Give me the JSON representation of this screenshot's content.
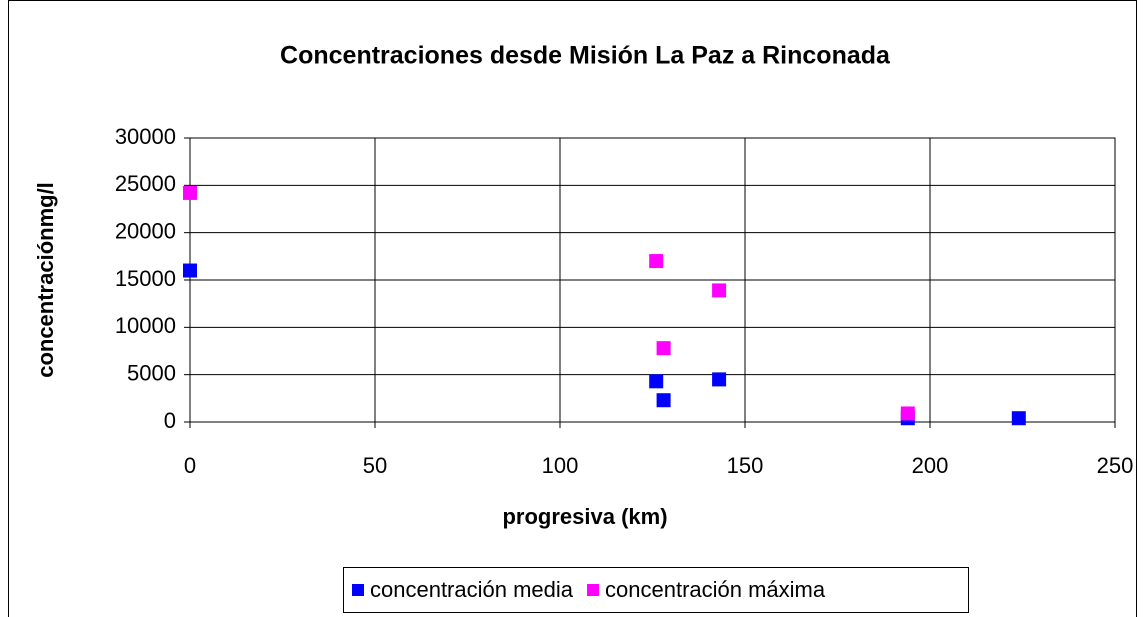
{
  "chart_data": {
    "type": "scatter",
    "title": "Concentraciones desde Misión La Paz a Rinconada",
    "xlabel": "progresiva (km)",
    "ylabel": "concentraciónmg/l",
    "xlim": [
      0,
      250
    ],
    "xticks": [
      0,
      50,
      100,
      150,
      200,
      250
    ],
    "ylim": [
      0,
      30000
    ],
    "yticks": [
      0,
      5000,
      10000,
      15000,
      20000,
      25000,
      30000
    ],
    "grid": true,
    "legend": "bottom",
    "series": [
      {
        "name": "concentración media",
        "color": "#0000ff",
        "x": [
          0,
          126,
          128,
          143,
          194,
          224
        ],
        "values": [
          16000,
          4300,
          2300,
          4500,
          400,
          400
        ]
      },
      {
        "name": "concentración máxima",
        "color": "#ff00ff",
        "x": [
          0,
          126,
          128,
          143,
          194
        ],
        "values": [
          24200,
          17000,
          7800,
          13900,
          900
        ]
      }
    ]
  }
}
